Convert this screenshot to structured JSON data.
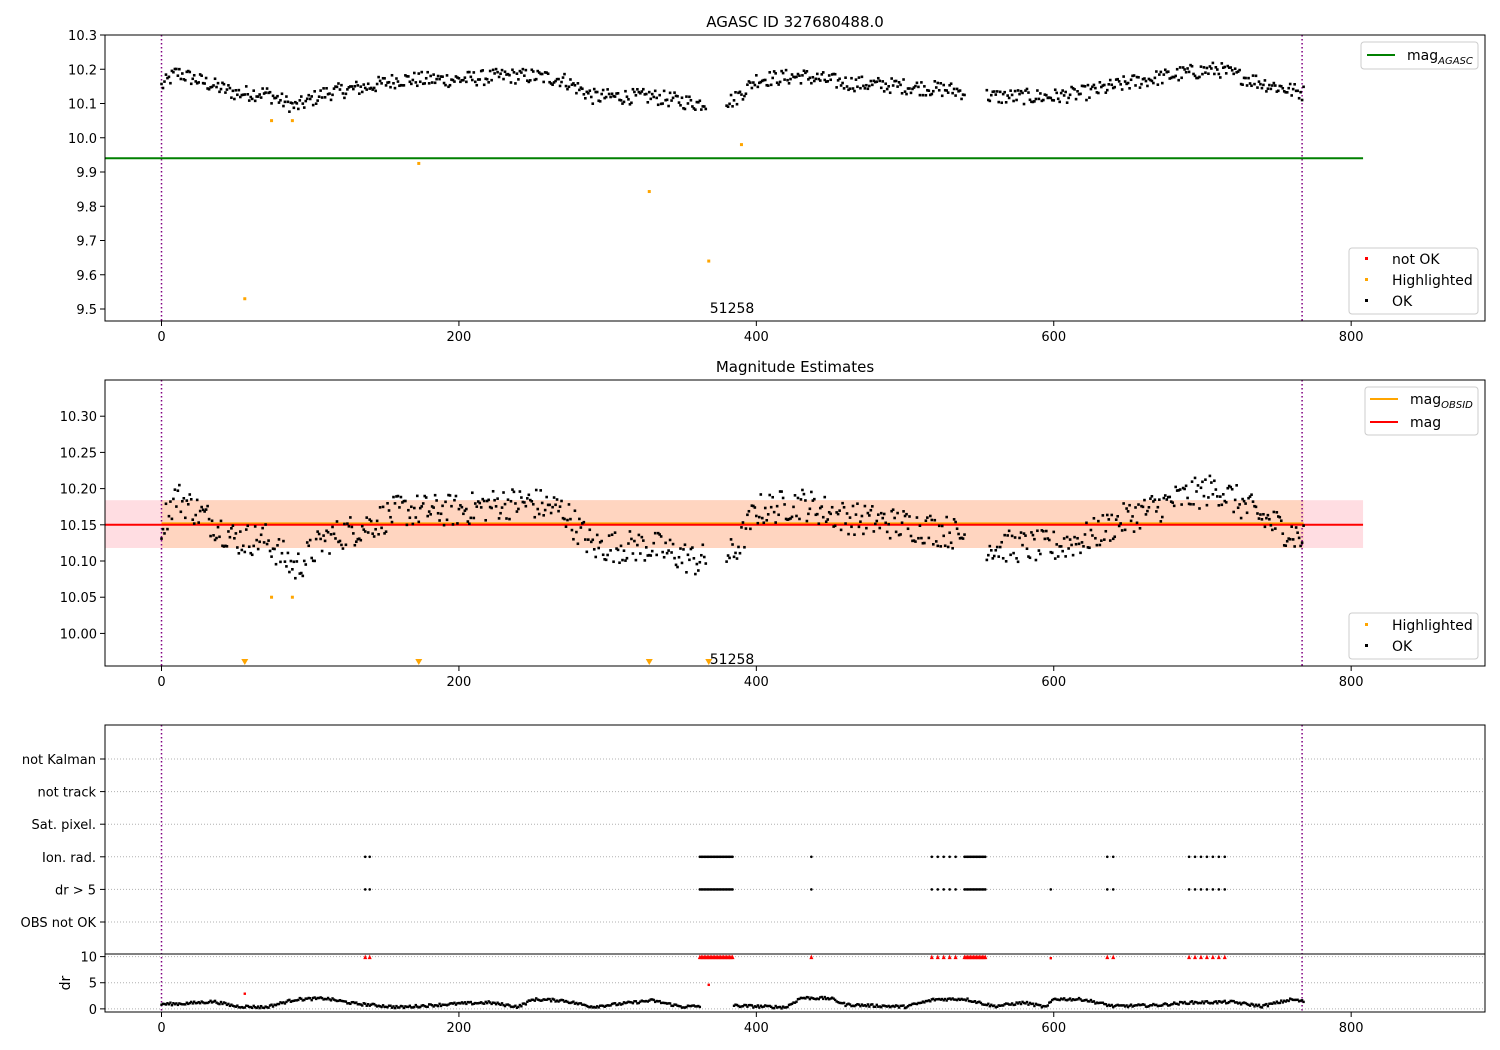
{
  "chart_data": [
    {
      "type": "scatter",
      "title": "AGASC ID 327680488.0",
      "xlim": [
        -38,
        890
      ],
      "ylim": [
        9.465,
        10.3
      ],
      "x_ticks": [
        0,
        200,
        400,
        600,
        800
      ],
      "y_ticks": [
        9.5,
        9.6,
        9.7,
        9.8,
        9.9,
        10.0,
        10.1,
        10.2,
        10.3
      ],
      "y_tick_labels": [
        "9.5",
        "9.6",
        "9.7",
        "9.8",
        "9.9",
        "10.0",
        "10.1",
        "10.2",
        "10.3"
      ],
      "vlines": [
        0,
        767
      ],
      "annotation": {
        "text": "51258",
        "x": 368,
        "y": 9.5
      },
      "hlines": [
        {
          "name": "mag_AGASC",
          "y": 9.94,
          "x_range": [
            -38,
            808
          ],
          "color": "#008000"
        }
      ],
      "line_legend": {
        "placement": "top-right",
        "entries": [
          {
            "base": "mag",
            "sub": "AGASC",
            "color": "#008000"
          }
        ]
      },
      "point_legend": {
        "placement": "lower-right",
        "entries": [
          {
            "label": "not OK",
            "color": "#ff0000"
          },
          {
            "label": "Highlighted",
            "color": "#ffa500"
          },
          {
            "label": "OK",
            "color": "#000000"
          }
        ]
      },
      "highlighted": [
        {
          "x": 56,
          "y": 9.53
        },
        {
          "x": 74,
          "y": 10.05
        },
        {
          "x": 88,
          "y": 10.05
        },
        {
          "x": 173,
          "y": 9.925
        },
        {
          "x": 328,
          "y": 9.843
        },
        {
          "x": 368,
          "y": 9.64
        },
        {
          "x": 390,
          "y": 9.98
        }
      ],
      "ok_series": {
        "x_range": [
          0,
          768
        ],
        "gaps": [
          [
            366,
            380
          ],
          [
            540,
            555
          ]
        ],
        "trend": [
          [
            0,
            10.15
          ],
          [
            10,
            10.19
          ],
          [
            30,
            10.16
          ],
          [
            50,
            10.13
          ],
          [
            70,
            10.13
          ],
          [
            90,
            10.09
          ],
          [
            110,
            10.13
          ],
          [
            140,
            10.15
          ],
          [
            160,
            10.17
          ],
          [
            200,
            10.17
          ],
          [
            230,
            10.18
          ],
          [
            250,
            10.18
          ],
          [
            270,
            10.17
          ],
          [
            290,
            10.12
          ],
          [
            330,
            10.12
          ],
          [
            360,
            10.1
          ],
          [
            385,
            10.11
          ],
          [
            400,
            10.17
          ],
          [
            430,
            10.18
          ],
          [
            460,
            10.16
          ],
          [
            500,
            10.15
          ],
          [
            530,
            10.14
          ],
          [
            560,
            10.12
          ],
          [
            600,
            10.12
          ],
          [
            620,
            10.13
          ],
          [
            650,
            10.16
          ],
          [
            690,
            10.19
          ],
          [
            710,
            10.2
          ],
          [
            740,
            10.16
          ],
          [
            768,
            10.13
          ]
        ]
      }
    },
    {
      "type": "scatter",
      "title": "Magnitude Estimates",
      "xlim": [
        -38,
        890
      ],
      "ylim": [
        9.955,
        10.35
      ],
      "x_ticks": [
        0,
        200,
        400,
        600,
        800
      ],
      "y_ticks": [
        10.0,
        10.05,
        10.1,
        10.15,
        10.2,
        10.25,
        10.3
      ],
      "y_tick_labels": [
        "10.00",
        "10.05",
        "10.10",
        "10.15",
        "10.20",
        "10.25",
        "10.30"
      ],
      "vlines": [
        0,
        767
      ],
      "annotation": {
        "text": "51258",
        "x": 368,
        "y": 9.963
      },
      "mag_band": {
        "y_range": [
          10.118,
          10.184
        ],
        "x_range": [
          -38,
          808
        ],
        "color": "#ffdde2"
      },
      "obsid_band": {
        "y_range": [
          10.118,
          10.184
        ],
        "x_range": [
          0,
          768
        ],
        "color": "#ffd5c0"
      },
      "hlines": [
        {
          "name": "mag_OBSID",
          "y": 10.152,
          "x_range": [
            0,
            768
          ],
          "color": "#ffa500"
        },
        {
          "name": "mag",
          "y": 10.15,
          "x_range": [
            -38,
            808
          ],
          "color": "#ff0000"
        }
      ],
      "line_legend": {
        "placement": "top-right",
        "entries": [
          {
            "base": "mag",
            "sub": "OBSID",
            "color": "#ffa500"
          },
          {
            "base": "mag",
            "sub": "",
            "color": "#ff0000"
          }
        ]
      },
      "point_legend": {
        "placement": "lower-right",
        "entries": [
          {
            "label": "Highlighted",
            "color": "#ffa500"
          },
          {
            "label": "OK",
            "color": "#000000"
          }
        ]
      },
      "highlighted": [
        {
          "x": 74,
          "y": 10.05
        },
        {
          "x": 88,
          "y": 10.05
        }
      ],
      "offscale_markers": [
        56,
        173,
        328,
        368
      ],
      "ok_series": {
        "x_range": [
          0,
          768
        ],
        "gaps": [
          [
            366,
            380
          ],
          [
            540,
            555
          ]
        ],
        "trend": [
          [
            0,
            10.15
          ],
          [
            10,
            10.19
          ],
          [
            30,
            10.16
          ],
          [
            50,
            10.13
          ],
          [
            70,
            10.13
          ],
          [
            90,
            10.09
          ],
          [
            110,
            10.13
          ],
          [
            140,
            10.15
          ],
          [
            160,
            10.17
          ],
          [
            200,
            10.17
          ],
          [
            230,
            10.18
          ],
          [
            250,
            10.18
          ],
          [
            270,
            10.17
          ],
          [
            290,
            10.12
          ],
          [
            330,
            10.12
          ],
          [
            360,
            10.1
          ],
          [
            385,
            10.11
          ],
          [
            400,
            10.17
          ],
          [
            430,
            10.18
          ],
          [
            460,
            10.16
          ],
          [
            500,
            10.15
          ],
          [
            530,
            10.14
          ],
          [
            560,
            10.12
          ],
          [
            600,
            10.12
          ],
          [
            620,
            10.13
          ],
          [
            650,
            10.16
          ],
          [
            690,
            10.19
          ],
          [
            710,
            10.2
          ],
          [
            740,
            10.16
          ],
          [
            768,
            10.13
          ]
        ]
      }
    },
    {
      "type": "scatter",
      "title": "",
      "xlim": [
        -38,
        890
      ],
      "x_ticks": [
        0,
        200,
        400,
        600,
        800
      ],
      "vlines": [
        0,
        767
      ],
      "flag_rows": [
        "not Kalman",
        "not track",
        "Sat. pixel.",
        "Ion. rad.",
        "dr > 5",
        "OBS not OK"
      ],
      "flag_points": {
        "Ion. rad.": [
          137,
          140,
          362,
          363,
          364,
          365,
          366,
          367,
          368,
          369,
          370,
          371,
          372,
          373,
          374,
          375,
          376,
          377,
          378,
          379,
          380,
          381,
          382,
          383,
          384,
          437,
          518,
          522,
          526,
          530,
          534,
          540,
          541,
          542,
          543,
          544,
          545,
          546,
          547,
          548,
          549,
          550,
          551,
          552,
          553,
          554,
          636,
          640,
          691,
          695,
          699,
          703,
          707,
          711,
          715
        ],
        "dr > 5": [
          137,
          140,
          362,
          363,
          364,
          365,
          366,
          367,
          368,
          369,
          370,
          371,
          372,
          373,
          374,
          375,
          376,
          377,
          378,
          379,
          380,
          381,
          382,
          383,
          384,
          437,
          518,
          522,
          526,
          530,
          534,
          540,
          541,
          542,
          543,
          544,
          545,
          546,
          547,
          548,
          549,
          550,
          551,
          552,
          553,
          554,
          598,
          636,
          640,
          691,
          695,
          699,
          703,
          707,
          711,
          715
        ]
      },
      "dr_panel": {
        "ylabel": "dr",
        "ylim": [
          -0.6,
          10.5
        ],
        "y_ticks": [
          0,
          5,
          10
        ],
        "y_tick_labels": [
          "0",
          "5",
          "10"
        ],
        "capped_value": 10,
        "capped_x": [
          137,
          140,
          362,
          363,
          364,
          365,
          366,
          367,
          368,
          369,
          370,
          371,
          372,
          373,
          374,
          375,
          376,
          377,
          378,
          379,
          380,
          381,
          382,
          383,
          384,
          437,
          518,
          522,
          526,
          530,
          534,
          540,
          541,
          542,
          543,
          544,
          545,
          546,
          547,
          548,
          549,
          550,
          551,
          552,
          553,
          554,
          636,
          640,
          691,
          695,
          699,
          703,
          707,
          711,
          715
        ],
        "red_points": [
          {
            "x": 56,
            "y": 2.9
          },
          {
            "x": 368,
            "y": 4.6
          },
          {
            "x": 598,
            "y": 9.7
          }
        ],
        "ok_x_range": [
          0,
          768
        ],
        "ok_gaps": [
          [
            362,
            385
          ]
        ],
        "ok_trend": [
          [
            0,
            0.9
          ],
          [
            15,
            1.0
          ],
          [
            35,
            1.4
          ],
          [
            50,
            0.5
          ],
          [
            70,
            0.3
          ],
          [
            90,
            1.8
          ],
          [
            110,
            2.0
          ],
          [
            130,
            1.0
          ],
          [
            160,
            0.3
          ],
          [
            200,
            1.0
          ],
          [
            220,
            1.2
          ],
          [
            240,
            0.4
          ],
          [
            250,
            1.8
          ],
          [
            270,
            1.6
          ],
          [
            290,
            0.4
          ],
          [
            310,
            1.0
          ],
          [
            330,
            1.6
          ],
          [
            350,
            0.4
          ],
          [
            361,
            0.5
          ],
          [
            386,
            0.6
          ],
          [
            420,
            0.3
          ],
          [
            430,
            2.1
          ],
          [
            450,
            2.0
          ],
          [
            460,
            0.8
          ],
          [
            500,
            0.4
          ],
          [
            520,
            1.8
          ],
          [
            540,
            1.9
          ],
          [
            560,
            0.5
          ],
          [
            580,
            1.2
          ],
          [
            595,
            0.3
          ],
          [
            600,
            1.9
          ],
          [
            620,
            1.8
          ],
          [
            640,
            0.5
          ],
          [
            670,
            0.7
          ],
          [
            690,
            1.2
          ],
          [
            720,
            1.3
          ],
          [
            740,
            0.5
          ],
          [
            760,
            1.8
          ],
          [
            768,
            1.4
          ]
        ]
      }
    }
  ]
}
